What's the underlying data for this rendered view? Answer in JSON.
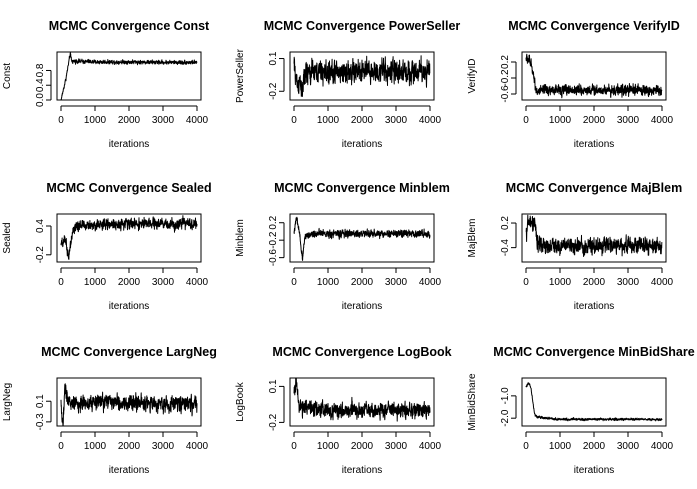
{
  "chart_data": [
    {
      "type": "line",
      "title": "MCMC Convergence Const",
      "xlabel": "iterations",
      "ylabel": "Const",
      "xlim": [
        0,
        4000
      ],
      "ylim": [
        0.0,
        1.3
      ],
      "x_ticks": [
        0,
        1000,
        2000,
        3000,
        4000
      ],
      "y_ticks": [
        0.0,
        0.4,
        0.8
      ],
      "x_tick_labels": [
        "0",
        "1000",
        "2000",
        "3000",
        "4000"
      ],
      "y_tick_labels": [
        "0.0",
        "0.4",
        "0.8"
      ],
      "trace": {
        "iterations": 4000,
        "points": [
          [
            0,
            0.0
          ],
          [
            150,
            0.6
          ],
          [
            270,
            1.25
          ],
          [
            320,
            1.05
          ],
          [
            500,
            1.05
          ],
          [
            1000,
            1.03
          ],
          [
            2000,
            1.03
          ],
          [
            3000,
            1.02
          ],
          [
            4000,
            1.02
          ]
        ],
        "noise": 0.025
      }
    },
    {
      "type": "line",
      "title": "MCMC Convergence PowerSeller",
      "xlabel": "iterations",
      "ylabel": "PowerSeller",
      "xlim": [
        0,
        4000
      ],
      "ylim": [
        -0.28,
        0.16
      ],
      "x_ticks": [
        0,
        1000,
        2000,
        3000,
        4000
      ],
      "y_ticks": [
        -0.2,
        0.1
      ],
      "x_tick_labels": [
        "0",
        "1000",
        "2000",
        "3000",
        "4000"
      ],
      "y_tick_labels": [
        "-0.2",
        "0.1"
      ],
      "trace": {
        "iterations": 4000,
        "points": [
          [
            0,
            0.04
          ],
          [
            100,
            -0.15
          ],
          [
            200,
            -0.08
          ],
          [
            230,
            -0.26
          ],
          [
            300,
            -0.05
          ],
          [
            600,
            -0.02
          ],
          [
            1000,
            -0.03
          ],
          [
            2000,
            -0.02
          ],
          [
            3000,
            -0.02
          ],
          [
            4000,
            -0.02
          ]
        ],
        "noise": 0.05
      }
    },
    {
      "type": "line",
      "title": "MCMC Convergence VerifyID",
      "xlabel": "iterations",
      "ylabel": "VerifyID",
      "xlim": [
        0,
        4000
      ],
      "ylim": [
        -0.75,
        0.45
      ],
      "x_ticks": [
        0,
        1000,
        2000,
        3000,
        4000
      ],
      "y_ticks": [
        -0.6,
        -0.2,
        0.2
      ],
      "x_tick_labels": [
        "0",
        "1000",
        "2000",
        "3000",
        "4000"
      ],
      "y_tick_labels": [
        "-0.6",
        "-0.2",
        "0.2"
      ],
      "trace": {
        "iterations": 4000,
        "points": [
          [
            0,
            0.3
          ],
          [
            100,
            0.25
          ],
          [
            200,
            0.0
          ],
          [
            280,
            -0.45
          ],
          [
            350,
            -0.55
          ],
          [
            600,
            -0.5
          ],
          [
            1000,
            -0.5
          ],
          [
            2000,
            -0.5
          ],
          [
            3000,
            -0.5
          ],
          [
            4000,
            -0.52
          ]
        ],
        "noise": 0.06
      }
    },
    {
      "type": "line",
      "title": "MCMC Convergence Sealed",
      "xlabel": "iterations",
      "ylabel": "Sealed",
      "xlim": [
        0,
        4000
      ],
      "ylim": [
        -0.35,
        0.65
      ],
      "x_ticks": [
        0,
        1000,
        2000,
        3000,
        4000
      ],
      "y_ticks": [
        -0.2,
        0.4
      ],
      "x_tick_labels": [
        "0",
        "1000",
        "2000",
        "3000",
        "4000"
      ],
      "y_tick_labels": [
        "-0.2",
        "0.4"
      ],
      "trace": {
        "iterations": 4000,
        "points": [
          [
            0,
            0.0
          ],
          [
            150,
            0.1
          ],
          [
            220,
            -0.3
          ],
          [
            300,
            0.1
          ],
          [
            400,
            0.4
          ],
          [
            1000,
            0.42
          ],
          [
            2000,
            0.45
          ],
          [
            3000,
            0.44
          ],
          [
            4000,
            0.45
          ]
        ],
        "noise": 0.05
      }
    },
    {
      "type": "line",
      "title": "MCMC Convergence Minblem",
      "xlabel": "iterations",
      "ylabel": "Minblem",
      "xlim": [
        0,
        4000
      ],
      "ylim": [
        -0.7,
        0.4
      ],
      "x_ticks": [
        0,
        1000,
        2000,
        3000,
        4000
      ],
      "y_ticks": [
        -0.6,
        -0.2,
        0.2
      ],
      "x_tick_labels": [
        "0",
        "1000",
        "2000",
        "3000",
        "4000"
      ],
      "y_tick_labels": [
        "-0.6",
        "-0.2",
        "0.2"
      ],
      "trace": {
        "iterations": 4000,
        "points": [
          [
            0,
            0.0
          ],
          [
            80,
            0.3
          ],
          [
            150,
            0.0
          ],
          [
            250,
            -0.65
          ],
          [
            320,
            -0.1
          ],
          [
            600,
            -0.05
          ],
          [
            1000,
            -0.05
          ],
          [
            2000,
            -0.05
          ],
          [
            3000,
            -0.05
          ],
          [
            4000,
            -0.05
          ]
        ],
        "noise": 0.04
      }
    },
    {
      "type": "line",
      "title": "MCMC Convergence MajBlem",
      "xlabel": "iterations",
      "ylabel": "MajBlem",
      "xlim": [
        0,
        4000
      ],
      "ylim": [
        -0.75,
        0.42
      ],
      "x_ticks": [
        0,
        1000,
        2000,
        3000,
        4000
      ],
      "y_ticks": [
        -0.4,
        0.2
      ],
      "x_tick_labels": [
        "0",
        "1000",
        "2000",
        "3000",
        "4000"
      ],
      "y_tick_labels": [
        "-0.4",
        "0.2"
      ],
      "trace": {
        "iterations": 4000,
        "points": [
          [
            0,
            0.0
          ],
          [
            100,
            0.25
          ],
          [
            200,
            0.15
          ],
          [
            260,
            0.3
          ],
          [
            320,
            -0.3
          ],
          [
            500,
            -0.35
          ],
          [
            1000,
            -0.35
          ],
          [
            2000,
            -0.35
          ],
          [
            3000,
            -0.35
          ],
          [
            4000,
            -0.35
          ]
        ],
        "noise": 0.09
      }
    },
    {
      "type": "line",
      "title": "MCMC Convergence LargNeg",
      "xlabel": "iterations",
      "ylabel": "LargNeg",
      "xlim": [
        0,
        4000
      ],
      "ylim": [
        -0.38,
        0.55
      ],
      "x_ticks": [
        0,
        1000,
        2000,
        3000,
        4000
      ],
      "y_ticks": [
        -0.3,
        0.1
      ],
      "x_tick_labels": [
        "0",
        "1000",
        "2000",
        "3000",
        "4000"
      ],
      "y_tick_labels": [
        "-0.3",
        "0.1"
      ],
      "trace": {
        "iterations": 4000,
        "points": [
          [
            0,
            0.0
          ],
          [
            60,
            -0.35
          ],
          [
            120,
            0.45
          ],
          [
            200,
            0.1
          ],
          [
            400,
            0.05
          ],
          [
            1000,
            0.08
          ],
          [
            2000,
            0.06
          ],
          [
            3000,
            0.05
          ],
          [
            4000,
            0.06
          ]
        ],
        "noise": 0.07
      }
    },
    {
      "type": "line",
      "title": "MCMC Convergence LogBook",
      "xlabel": "iterations",
      "ylabel": "LogBook",
      "xlim": [
        0,
        4000
      ],
      "ylim": [
        -0.23,
        0.17
      ],
      "x_ticks": [
        0,
        1000,
        2000,
        3000,
        4000
      ],
      "y_ticks": [
        -0.2,
        0.1
      ],
      "x_tick_labels": [
        "0",
        "1000",
        "2000",
        "3000",
        "4000"
      ],
      "y_tick_labels": [
        "-0.2",
        "0.1"
      ],
      "trace": {
        "iterations": 4000,
        "points": [
          [
            0,
            0.05
          ],
          [
            60,
            0.14
          ],
          [
            120,
            0.0
          ],
          [
            200,
            -0.1
          ],
          [
            300,
            -0.06
          ],
          [
            600,
            -0.08
          ],
          [
            1000,
            -0.1
          ],
          [
            2000,
            -0.1
          ],
          [
            3000,
            -0.1
          ],
          [
            4000,
            -0.1
          ]
        ],
        "noise": 0.03
      }
    },
    {
      "type": "line",
      "title": "MCMC Convergence MinBidShare",
      "xlabel": "iterations",
      "ylabel": "MinBidShare",
      "xlim": [
        0,
        4000
      ],
      "ylim": [
        -2.35,
        -0.2
      ],
      "x_ticks": [
        0,
        1000,
        2000,
        3000,
        4000
      ],
      "y_ticks": [
        -2.0,
        -1.0
      ],
      "x_tick_labels": [
        "0",
        "1000",
        "2000",
        "3000",
        "4000"
      ],
      "y_tick_labels": [
        "-2.0",
        "-1.0"
      ],
      "trace": {
        "iterations": 4000,
        "points": [
          [
            0,
            -0.6
          ],
          [
            80,
            -0.4
          ],
          [
            150,
            -0.7
          ],
          [
            250,
            -1.8
          ],
          [
            320,
            -1.95
          ],
          [
            600,
            -2.0
          ],
          [
            1000,
            -2.05
          ],
          [
            2000,
            -2.05
          ],
          [
            3000,
            -2.05
          ],
          [
            4000,
            -2.07
          ]
        ],
        "noise": 0.025
      }
    }
  ]
}
